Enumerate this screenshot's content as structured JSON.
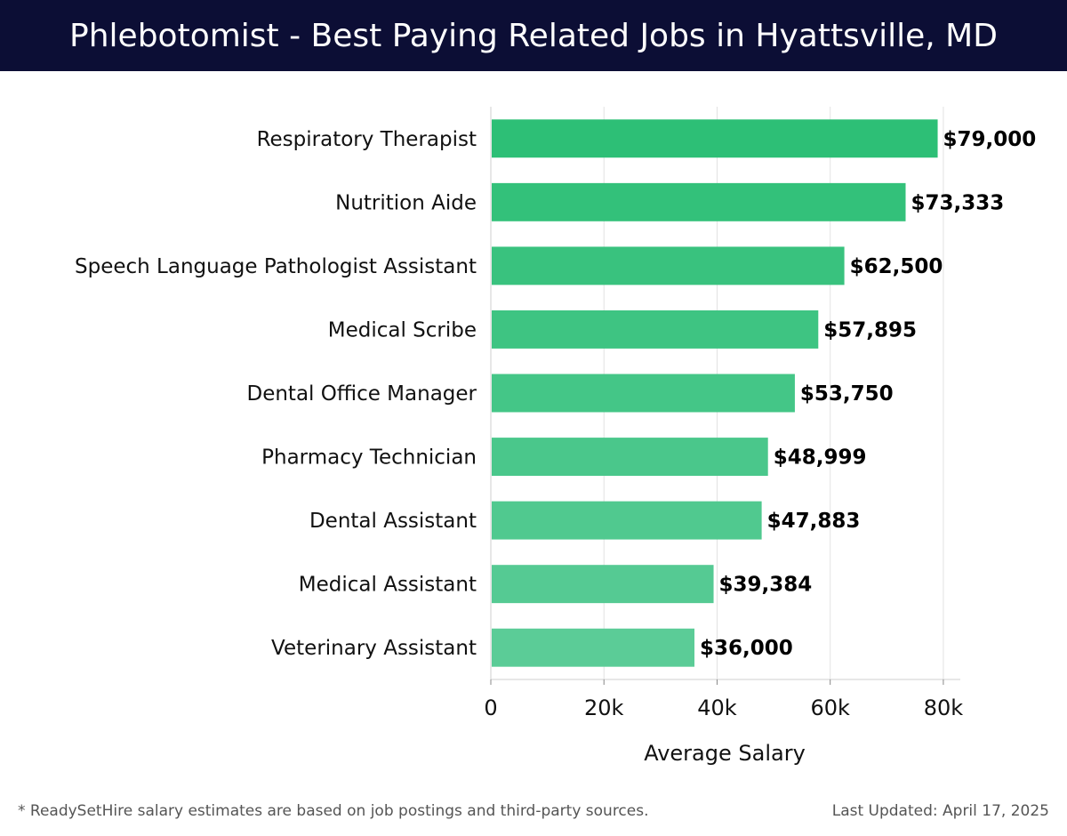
{
  "header": {
    "title": "Phlebotomist - Best Paying Related Jobs in Hyattsville, MD"
  },
  "chart_data": {
    "type": "bar",
    "orientation": "horizontal",
    "categories": [
      "Respiratory Therapist",
      "Nutrition Aide",
      "Speech Language Pathologist Assistant",
      "Medical Scribe",
      "Dental Office Manager",
      "Pharmacy Technician",
      "Dental Assistant",
      "Medical Assistant",
      "Veterinary Assistant"
    ],
    "values": [
      79000,
      73333,
      62500,
      57895,
      53750,
      48999,
      47883,
      39384,
      36000
    ],
    "data_labels": [
      "$79,000",
      "$73,333",
      "$62,500",
      "$57,895",
      "$53,750",
      "$48,999",
      "$47,883",
      "$39,384",
      "$36,000"
    ],
    "xlabel": "Average Salary",
    "ylabel": "",
    "xlim": [
      0,
      83000
    ],
    "xticks": [
      0,
      20000,
      40000,
      60000,
      80000
    ],
    "xtick_labels": [
      "0",
      "20k",
      "40k",
      "60k",
      "80k"
    ],
    "grid": true,
    "bar_color_top": "#2dbf76",
    "bar_color_bottom": "#5bcc97"
  },
  "footer": {
    "note": "* ReadySetHire salary estimates are based on job postings and third-party sources.",
    "updated": "Last Updated: April 17, 2025"
  }
}
